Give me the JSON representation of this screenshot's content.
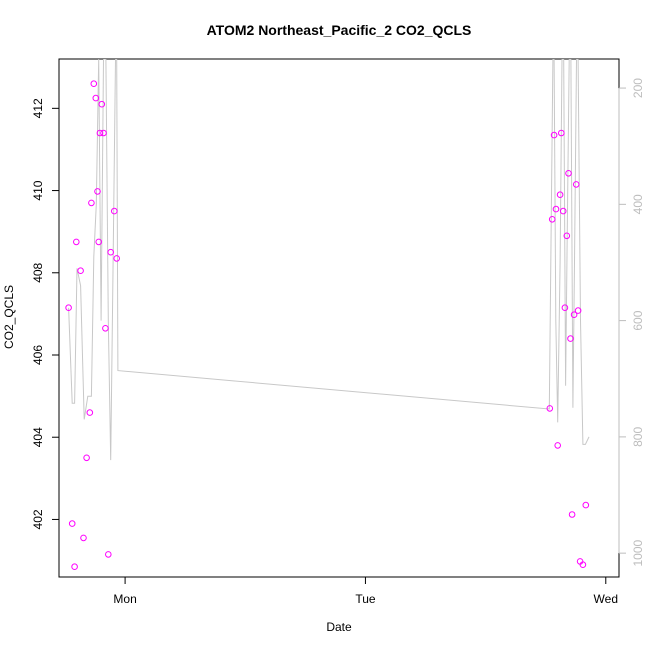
{
  "chart_data": {
    "type": "scatter",
    "title": "ATOM2 Northeast_Pacific_2 CO2_QCLS",
    "xlabel": "Date",
    "ylabel": "CO2_QCLS",
    "x_ticks": [
      "Mon",
      "Tue",
      "Wed"
    ],
    "x_tick_days": [
      1,
      2,
      3
    ],
    "xlim_days": [
      0.725,
      3.055
    ],
    "ylim": [
      400.6,
      413.2
    ],
    "y_ticks": [
      402,
      404,
      406,
      408,
      410,
      412
    ],
    "y2_ticks": [
      200,
      400,
      600,
      800,
      1000
    ],
    "y2lim": [
      1041,
      150
    ],
    "grid": false,
    "series": [
      {
        "marker": "open-circle",
        "color": "#ff00ff",
        "axis": "left",
        "points": [
          [
            0.765,
            407.15
          ],
          [
            0.78,
            401.9
          ],
          [
            0.79,
            400.85
          ],
          [
            0.797,
            408.75
          ],
          [
            0.815,
            408.05
          ],
          [
            0.827,
            401.55
          ],
          [
            0.84,
            403.5
          ],
          [
            0.853,
            404.6
          ],
          [
            0.86,
            409.7
          ],
          [
            0.87,
            412.6
          ],
          [
            0.878,
            412.25
          ],
          [
            0.885,
            409.98
          ],
          [
            0.89,
            408.75
          ],
          [
            0.895,
            411.4
          ],
          [
            0.903,
            412.1
          ],
          [
            0.91,
            411.4
          ],
          [
            0.918,
            406.65
          ],
          [
            0.93,
            401.15
          ],
          [
            0.94,
            408.5
          ],
          [
            0.955,
            409.5
          ],
          [
            0.965,
            408.35
          ],
          [
            2.767,
            404.7
          ],
          [
            2.777,
            409.3
          ],
          [
            2.785,
            411.35
          ],
          [
            2.793,
            409.55
          ],
          [
            2.8,
            403.8
          ],
          [
            2.81,
            409.9
          ],
          [
            2.815,
            411.4
          ],
          [
            2.823,
            409.5
          ],
          [
            2.83,
            407.15
          ],
          [
            2.838,
            408.9
          ],
          [
            2.845,
            410.42
          ],
          [
            2.853,
            406.4
          ],
          [
            2.86,
            402.12
          ],
          [
            2.868,
            406.98
          ],
          [
            2.877,
            410.15
          ],
          [
            2.885,
            407.08
          ],
          [
            2.893,
            400.98
          ],
          [
            2.905,
            400.9
          ],
          [
            2.917,
            402.35
          ]
        ]
      },
      {
        "marker": "line",
        "color": "#c8c8c8",
        "axis": "right",
        "points": [
          [
            0.765,
            578
          ],
          [
            0.78,
            742
          ],
          [
            0.79,
            742
          ],
          [
            0.8,
            510
          ],
          [
            0.815,
            540
          ],
          [
            0.83,
            770
          ],
          [
            0.845,
            730
          ],
          [
            0.86,
            730
          ],
          [
            0.87,
            490
          ],
          [
            0.88,
            400
          ],
          [
            0.89,
            150
          ],
          [
            0.9,
            600
          ],
          [
            0.91,
            150
          ],
          [
            0.92,
            150
          ],
          [
            0.93,
            600
          ],
          [
            0.94,
            840
          ],
          [
            0.95,
            500
          ],
          [
            0.96,
            150
          ],
          [
            0.965,
            150
          ],
          [
            0.97,
            686
          ],
          [
            2.765,
            752
          ],
          [
            2.78,
            150
          ],
          [
            2.785,
            150
          ],
          [
            2.792,
            600
          ],
          [
            2.8,
            775
          ],
          [
            2.81,
            500
          ],
          [
            2.818,
            150
          ],
          [
            2.825,
            150
          ],
          [
            2.833,
            712
          ],
          [
            2.84,
            440
          ],
          [
            2.848,
            150
          ],
          [
            2.855,
            150
          ],
          [
            2.863,
            750
          ],
          [
            2.87,
            500
          ],
          [
            2.878,
            150
          ],
          [
            2.885,
            150
          ],
          [
            2.895,
            600
          ],
          [
            2.905,
            813
          ],
          [
            2.915,
            813
          ],
          [
            2.93,
            800
          ]
        ]
      }
    ]
  }
}
